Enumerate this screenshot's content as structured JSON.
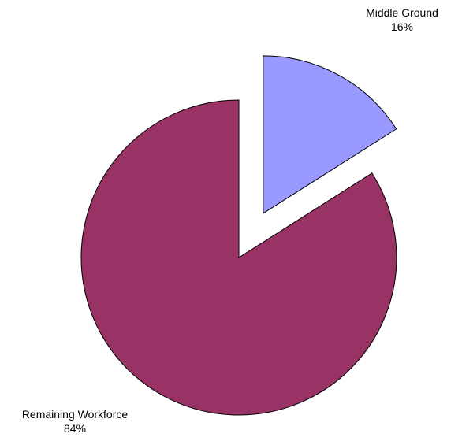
{
  "chart_data": {
    "type": "pie",
    "title": "",
    "slices": [
      {
        "label": "Middle Ground",
        "percent_label": "16%",
        "value": 16,
        "color": "#9999ff",
        "exploded": true
      },
      {
        "label": "Remaining Workforce",
        "percent_label": "84%",
        "value": 84,
        "color": "#993366",
        "exploded": false
      }
    ],
    "legend": "none"
  }
}
